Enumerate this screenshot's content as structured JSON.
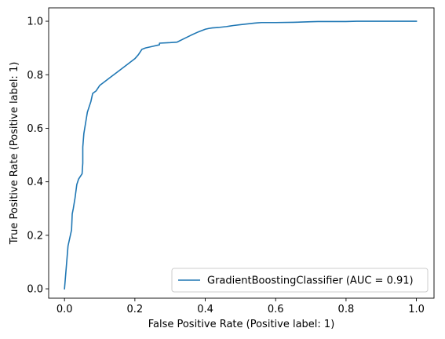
{
  "chart_data": {
    "type": "line",
    "title": "",
    "xlabel": "False Positive Rate (Positive label: 1)",
    "ylabel": "True Positive Rate (Positive label: 1)",
    "xlim": [
      -0.045,
      1.05
    ],
    "ylim": [
      -0.035,
      1.05
    ],
    "xticks": [
      0.0,
      0.2,
      0.4,
      0.6,
      0.8,
      1.0
    ],
    "yticks": [
      0.0,
      0.2,
      0.4,
      0.6,
      0.8,
      1.0
    ],
    "xtick_labels": [
      "0.0",
      "0.2",
      "0.4",
      "0.6",
      "0.8",
      "1.0"
    ],
    "ytick_labels": [
      "0.0",
      "0.2",
      "0.4",
      "0.6",
      "0.8",
      "1.0"
    ],
    "grid": false,
    "legend_position": "lower-right",
    "series": [
      {
        "name": "GradientBoostingClassifier (AUC = 0.91)",
        "color": "#1f77b4",
        "x": [
          0.0,
          0.005,
          0.01,
          0.02,
          0.022,
          0.025,
          0.03,
          0.035,
          0.04,
          0.05,
          0.052,
          0.052,
          0.055,
          0.06,
          0.065,
          0.07,
          0.075,
          0.08,
          0.09,
          0.1,
          0.11,
          0.13,
          0.15,
          0.18,
          0.2,
          0.21,
          0.22,
          0.23,
          0.25,
          0.27,
          0.27,
          0.3,
          0.32,
          0.34,
          0.36,
          0.38,
          0.39,
          0.4,
          0.41,
          0.42,
          0.44,
          0.46,
          0.47,
          0.48,
          0.5,
          0.52,
          0.54,
          0.55,
          0.56,
          0.6,
          0.65,
          0.7,
          0.72,
          0.8,
          0.83,
          0.9,
          1.0
        ],
        "y": [
          0.0,
          0.08,
          0.16,
          0.22,
          0.28,
          0.3,
          0.34,
          0.39,
          0.41,
          0.43,
          0.47,
          0.53,
          0.58,
          0.62,
          0.66,
          0.68,
          0.7,
          0.73,
          0.74,
          0.76,
          0.77,
          0.79,
          0.81,
          0.84,
          0.86,
          0.875,
          0.895,
          0.9,
          0.906,
          0.912,
          0.918,
          0.92,
          0.922,
          0.935,
          0.948,
          0.96,
          0.965,
          0.97,
          0.973,
          0.975,
          0.977,
          0.98,
          0.982,
          0.984,
          0.987,
          0.99,
          0.993,
          0.994,
          0.995,
          0.995,
          0.996,
          0.998,
          0.999,
          0.999,
          1.0,
          1.0,
          1.0
        ]
      }
    ]
  }
}
